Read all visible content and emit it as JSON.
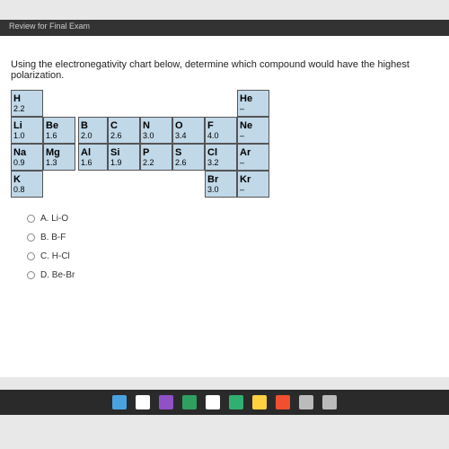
{
  "header": {
    "title": "Review for Final Exam"
  },
  "question": "Using the electronegativity chart below, determine which compound would have the highest polarization.",
  "periodic_table": {
    "type": "table",
    "cell_bg": "#c0d8e8",
    "border_color": "#555555",
    "sym_fontsize": 11,
    "en_fontsize": 9,
    "rows": [
      [
        {
          "sym": "H",
          "en": "2.2"
        },
        null,
        null,
        null,
        null,
        null,
        null,
        {
          "sym": "He",
          "en": "–"
        }
      ],
      [
        {
          "sym": "Li",
          "en": "1.0"
        },
        {
          "sym": "Be",
          "en": "1.6"
        },
        {
          "sym": "B",
          "en": "2.0"
        },
        {
          "sym": "C",
          "en": "2.6"
        },
        {
          "sym": "N",
          "en": "3.0"
        },
        {
          "sym": "O",
          "en": "3.4"
        },
        {
          "sym": "F",
          "en": "4.0"
        },
        {
          "sym": "Ne",
          "en": "–"
        }
      ],
      [
        {
          "sym": "Na",
          "en": "0.9"
        },
        {
          "sym": "Mg",
          "en": "1.3"
        },
        {
          "sym": "Al",
          "en": "1.6"
        },
        {
          "sym": "Si",
          "en": "1.9"
        },
        {
          "sym": "P",
          "en": "2.2"
        },
        {
          "sym": "S",
          "en": "2.6"
        },
        {
          "sym": "Cl",
          "en": "3.2"
        },
        {
          "sym": "Ar",
          "en": "–"
        }
      ],
      [
        {
          "sym": "K",
          "en": "0.8"
        },
        null,
        null,
        null,
        null,
        null,
        {
          "sym": "Br",
          "en": "3.0"
        },
        {
          "sym": "Kr",
          "en": "–"
        }
      ]
    ]
  },
  "options": [
    {
      "letter": "A",
      "text": "Li-O"
    },
    {
      "letter": "B",
      "text": "B-F"
    },
    {
      "letter": "C",
      "text": "H-Cl"
    },
    {
      "letter": "D",
      "text": "Be-Br"
    }
  ],
  "taskbar": {
    "bg": "#2a2a2a",
    "icons": [
      "#4aa3df",
      "#ffffff",
      "#9050c8",
      "#30a060",
      "#ffffff",
      "#30b070",
      "#ffd040",
      "#f05030",
      "#bbbbbb",
      "#bbbbbb"
    ]
  }
}
